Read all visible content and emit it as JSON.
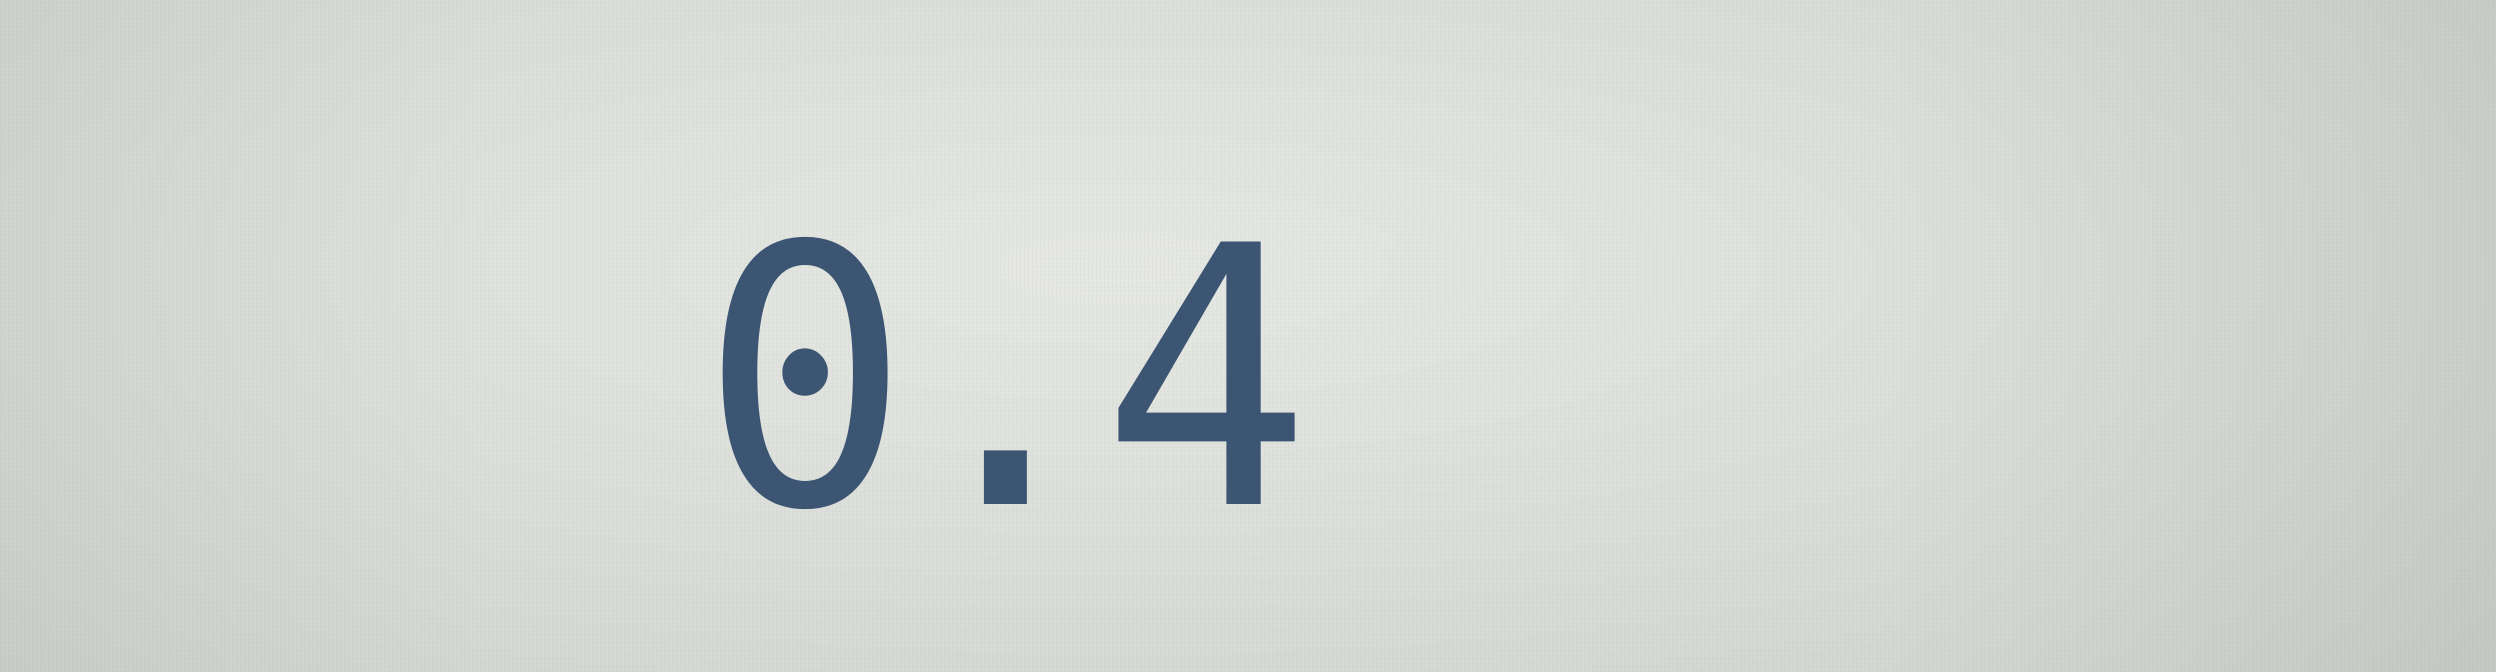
{
  "display": {
    "value": "0.4",
    "text_color": "#3b5573",
    "background_color": "#dcdfda"
  }
}
